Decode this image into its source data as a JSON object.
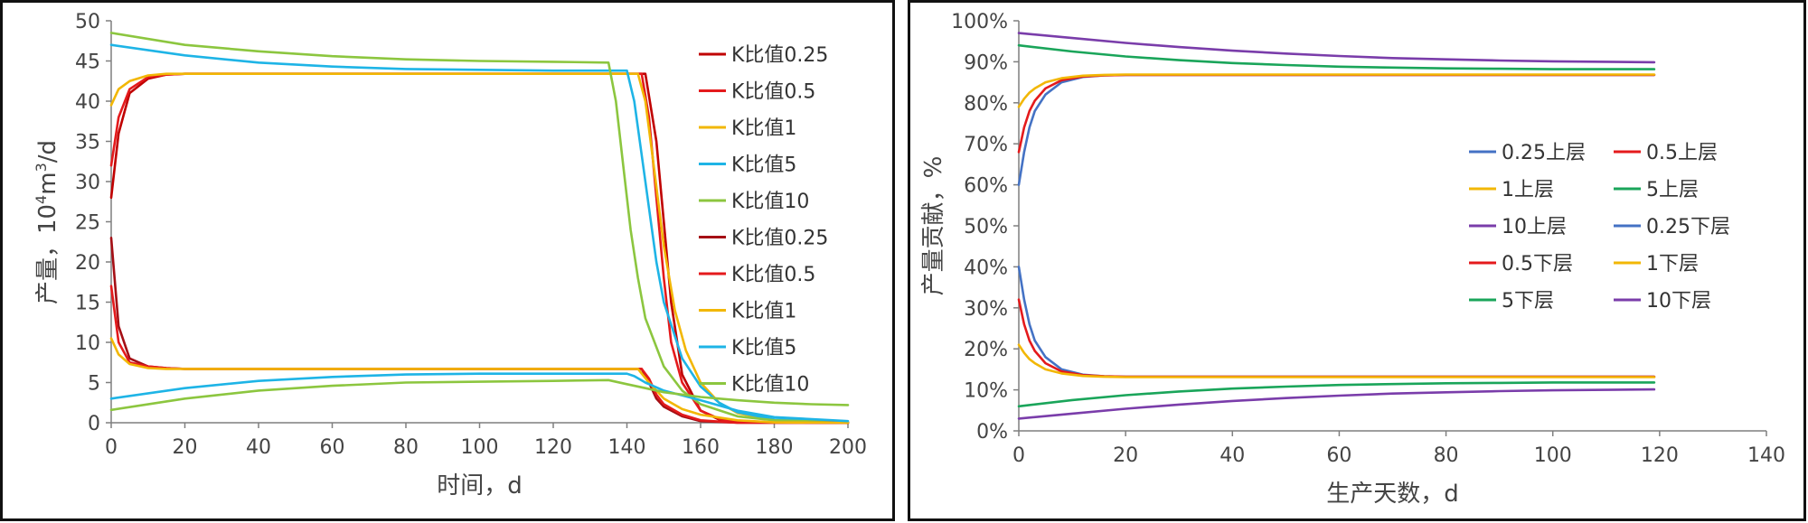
{
  "chart_data": [
    {
      "type": "line",
      "title": "",
      "xlabel": "时间，d",
      "ylabel_main": "产量，10",
      "ylabel_sup": "4",
      "ylabel_tail": "m",
      "ylabel_sup2": "3",
      "ylabel_end": "/d",
      "xlim": [
        0,
        200
      ],
      "ylim": [
        0,
        50
      ],
      "xticks": [
        "0",
        "20",
        "40",
        "60",
        "80",
        "100",
        "120",
        "140",
        "160",
        "180",
        "200"
      ],
      "yticks": [
        "0",
        "5",
        "10",
        "15",
        "20",
        "25",
        "30",
        "35",
        "40",
        "45",
        "50"
      ],
      "legend": [
        {
          "label": "K比值0.25",
          "color": "#C00000"
        },
        {
          "label": "K比值0.5",
          "color": "#E41A1C"
        },
        {
          "label": "K比值1",
          "color": "#F2B705"
        },
        {
          "label": "K比值5",
          "color": "#1EB4E6"
        },
        {
          "label": "K比值10",
          "color": "#8CC63F"
        },
        {
          "label": "K比值0.25",
          "color": "#A50F15"
        },
        {
          "label": "K比值0.5",
          "color": "#E41A1C"
        },
        {
          "label": "K比值1",
          "color": "#F2B705"
        },
        {
          "label": "K比值5",
          "color": "#1EB4E6"
        },
        {
          "label": "K比值10",
          "color": "#8CC63F"
        }
      ],
      "series": [
        {
          "name": "K比值0.25",
          "color": "#C00000",
          "x": [
            0,
            2,
            5,
            10,
            15,
            20,
            60,
            100,
            140,
            145,
            148,
            150,
            152,
            155,
            160,
            165,
            170,
            200
          ],
          "y": [
            28,
            36,
            41,
            42.8,
            43.3,
            43.4,
            43.4,
            43.4,
            43.4,
            43.4,
            35,
            25,
            15,
            6,
            1.5,
            0.4,
            0.1,
            0
          ]
        },
        {
          "name": "K比值0.5",
          "color": "#E41A1C",
          "x": [
            0,
            2,
            5,
            10,
            15,
            20,
            60,
            100,
            140,
            144,
            146,
            148,
            150,
            152,
            155,
            160,
            165,
            170,
            200
          ],
          "y": [
            32,
            38,
            41.5,
            43,
            43.3,
            43.4,
            43.4,
            43.4,
            43.4,
            43.4,
            38,
            28,
            18,
            10,
            5,
            1.5,
            0.5,
            0.1,
            0
          ]
        },
        {
          "name": "K比值1",
          "color": "#F2B705",
          "x": [
            0,
            2,
            5,
            10,
            15,
            20,
            60,
            100,
            140,
            143,
            145,
            147,
            150,
            153,
            156,
            160,
            165,
            170,
            180,
            200
          ],
          "y": [
            39.5,
            41.5,
            42.5,
            43.2,
            43.4,
            43.4,
            43.4,
            43.4,
            43.4,
            43.4,
            40,
            33,
            22,
            14,
            9,
            5,
            2.5,
            1.2,
            0.3,
            0
          ]
        },
        {
          "name": "K比值5",
          "color": "#1EB4E6",
          "x": [
            0,
            20,
            40,
            60,
            80,
            100,
            120,
            138,
            140,
            142,
            145,
            148,
            150,
            155,
            160,
            165,
            170,
            180,
            200
          ],
          "y": [
            47,
            45.7,
            44.8,
            44.3,
            44,
            43.9,
            43.8,
            43.8,
            43.8,
            40,
            30,
            20,
            15,
            8,
            4.5,
            2.5,
            1.3,
            0.4,
            0.1
          ]
        },
        {
          "name": "K比值10",
          "color": "#8CC63F",
          "x": [
            0,
            20,
            40,
            60,
            80,
            100,
            120,
            135,
            137,
            139,
            141,
            143,
            145,
            150,
            155,
            160,
            170,
            180,
            200
          ],
          "y": [
            48.5,
            47,
            46.2,
            45.6,
            45.2,
            45,
            44.9,
            44.8,
            40,
            32,
            24,
            18,
            13,
            7,
            4,
            2.3,
            0.8,
            0.3,
            0.05
          ]
        },
        {
          "name": "K比值0.25",
          "color": "#A50F15",
          "x": [
            0,
            2,
            5,
            10,
            15,
            20,
            60,
            100,
            140,
            144,
            146,
            148,
            150,
            155,
            160,
            170,
            200
          ],
          "y": [
            23,
            12,
            8,
            7,
            6.8,
            6.7,
            6.7,
            6.7,
            6.7,
            6.7,
            5,
            3,
            2,
            0.8,
            0.2,
            0,
            0
          ]
        },
        {
          "name": "K比值0.5",
          "color": "#E41A1C",
          "x": [
            0,
            2,
            5,
            10,
            15,
            20,
            60,
            100,
            140,
            144,
            146,
            148,
            150,
            155,
            160,
            170,
            200
          ],
          "y": [
            17,
            10,
            7.5,
            7,
            6.8,
            6.7,
            6.7,
            6.7,
            6.7,
            6.7,
            5.5,
            3.5,
            2.3,
            1,
            0.3,
            0,
            0
          ]
        },
        {
          "name": "K比值1",
          "color": "#F2B705",
          "x": [
            0,
            2,
            5,
            10,
            15,
            20,
            60,
            100,
            140,
            143,
            146,
            150,
            155,
            160,
            170,
            180,
            200
          ],
          "y": [
            10.5,
            8.5,
            7.3,
            6.8,
            6.7,
            6.7,
            6.7,
            6.7,
            6.7,
            6.7,
            5,
            3,
            1.7,
            1,
            0.3,
            0.05,
            0
          ]
        },
        {
          "name": "K比值5",
          "color": "#1EB4E6",
          "x": [
            0,
            20,
            40,
            60,
            80,
            100,
            120,
            140,
            142,
            145,
            150,
            160,
            170,
            180,
            200
          ],
          "y": [
            3,
            4.3,
            5.2,
            5.7,
            6,
            6.1,
            6.1,
            6.1,
            5.8,
            5,
            4,
            2.8,
            1.5,
            0.7,
            0.2
          ]
        },
        {
          "name": "K比值10",
          "color": "#8CC63F",
          "x": [
            0,
            20,
            40,
            60,
            80,
            100,
            120,
            135,
            140,
            145,
            150,
            160,
            170,
            180,
            190,
            200
          ],
          "y": [
            1.6,
            3,
            4,
            4.6,
            5,
            5.1,
            5.2,
            5.3,
            4.8,
            4.3,
            3.8,
            3.2,
            2.8,
            2.5,
            2.3,
            2.2
          ]
        }
      ]
    },
    {
      "type": "line",
      "title": "",
      "xlabel": "生产天数，d",
      "ylabel": "产量贡献，%",
      "xlim": [
        0,
        140
      ],
      "ylim": [
        0,
        100
      ],
      "xticks": [
        "0",
        "20",
        "40",
        "60",
        "80",
        "100",
        "120",
        "140"
      ],
      "yticks": [
        "0%",
        "10%",
        "20%",
        "30%",
        "40%",
        "50%",
        "60%",
        "70%",
        "80%",
        "90%",
        "100%"
      ],
      "legend": [
        {
          "label": "0.25上层",
          "color": "#4472C4"
        },
        {
          "label": "0.5上层",
          "color": "#E41A1C"
        },
        {
          "label": "1上层",
          "color": "#F2B705"
        },
        {
          "label": "5上层",
          "color": "#1AA55A"
        },
        {
          "label": "10上层",
          "color": "#7A3DAA"
        },
        {
          "label": "0.25下层",
          "color": "#4472C4"
        },
        {
          "label": "0.5下层",
          "color": "#E41A1C"
        },
        {
          "label": "1下层",
          "color": "#F2B705"
        },
        {
          "label": "5下层",
          "color": "#1AA55A"
        },
        {
          "label": "10下层",
          "color": "#7A3DAA"
        }
      ],
      "series": [
        {
          "name": "0.25上层",
          "color": "#4472C4",
          "x": [
            0,
            1,
            2,
            3,
            5,
            8,
            12,
            16,
            20,
            40,
            60,
            80,
            100,
            119
          ],
          "y": [
            60,
            68,
            74,
            78,
            82,
            85,
            86.3,
            86.7,
            86.8,
            86.8,
            86.8,
            86.8,
            86.8,
            86.8
          ]
        },
        {
          "name": "0.5上层",
          "color": "#E41A1C",
          "x": [
            0,
            1,
            2,
            3,
            5,
            8,
            12,
            16,
            20,
            40,
            60,
            80,
            100,
            119
          ],
          "y": [
            68,
            74,
            78,
            80.5,
            83.5,
            85.5,
            86.4,
            86.7,
            86.8,
            86.8,
            86.8,
            86.8,
            86.8,
            86.8
          ]
        },
        {
          "name": "1上层",
          "color": "#F2B705",
          "x": [
            0,
            1,
            2,
            3,
            5,
            8,
            12,
            16,
            20,
            40,
            60,
            80,
            100,
            119
          ],
          "y": [
            79,
            81,
            82.5,
            83.5,
            85,
            86,
            86.6,
            86.8,
            86.9,
            86.9,
            86.9,
            86.9,
            86.9,
            86.9
          ]
        },
        {
          "name": "5上层",
          "color": "#1AA55A",
          "x": [
            0,
            10,
            20,
            30,
            40,
            50,
            60,
            70,
            80,
            90,
            100,
            110,
            119
          ],
          "y": [
            94,
            92.5,
            91.3,
            90.4,
            89.7,
            89.2,
            88.8,
            88.6,
            88.4,
            88.3,
            88.2,
            88.2,
            88.2
          ]
        },
        {
          "name": "10上层",
          "color": "#7A3DAA",
          "x": [
            0,
            10,
            20,
            30,
            40,
            50,
            60,
            70,
            80,
            90,
            100,
            110,
            119
          ],
          "y": [
            97,
            95.8,
            94.6,
            93.6,
            92.7,
            92,
            91.4,
            90.9,
            90.6,
            90.3,
            90.1,
            90,
            89.9
          ]
        },
        {
          "name": "0.25下层",
          "color": "#4472C4",
          "x": [
            0,
            1,
            2,
            3,
            5,
            8,
            12,
            16,
            20,
            40,
            60,
            80,
            100,
            119
          ],
          "y": [
            40,
            32,
            26,
            22,
            18,
            15,
            13.7,
            13.3,
            13.2,
            13.2,
            13.2,
            13.2,
            13.2,
            13.2
          ]
        },
        {
          "name": "0.5下层",
          "color": "#E41A1C",
          "x": [
            0,
            1,
            2,
            3,
            5,
            8,
            12,
            16,
            20,
            40,
            60,
            80,
            100,
            119
          ],
          "y": [
            32,
            26,
            22,
            19.5,
            16.5,
            14.5,
            13.6,
            13.3,
            13.2,
            13.2,
            13.2,
            13.2,
            13.2,
            13.2
          ]
        },
        {
          "name": "1下层",
          "color": "#F2B705",
          "x": [
            0,
            1,
            2,
            3,
            5,
            8,
            12,
            16,
            20,
            40,
            60,
            80,
            100,
            119
          ],
          "y": [
            21,
            19,
            17.5,
            16.5,
            15,
            14,
            13.4,
            13.2,
            13.1,
            13.1,
            13.1,
            13.1,
            13.1,
            13.1
          ]
        },
        {
          "name": "5下层",
          "color": "#1AA55A",
          "x": [
            0,
            10,
            20,
            30,
            40,
            50,
            60,
            70,
            80,
            90,
            100,
            110,
            119
          ],
          "y": [
            6,
            7.5,
            8.7,
            9.6,
            10.3,
            10.8,
            11.2,
            11.4,
            11.6,
            11.7,
            11.8,
            11.8,
            11.8
          ]
        },
        {
          "name": "10下层",
          "color": "#7A3DAA",
          "x": [
            0,
            10,
            20,
            30,
            40,
            50,
            60,
            70,
            80,
            90,
            100,
            110,
            119
          ],
          "y": [
            3,
            4.2,
            5.4,
            6.4,
            7.3,
            8,
            8.6,
            9.1,
            9.4,
            9.7,
            9.9,
            10,
            10.1
          ]
        }
      ]
    }
  ]
}
